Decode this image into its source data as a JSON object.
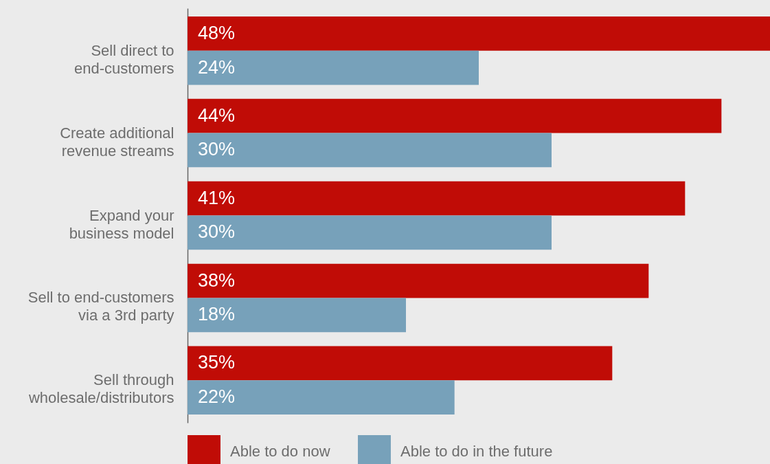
{
  "chart_data": {
    "type": "bar",
    "orientation": "horizontal",
    "categories": [
      "Sell direct to end-customers",
      "Create additional revenue streams",
      "Expand your business model",
      "Sell to end-customers via a 3rd party",
      "Sell through wholesale/distributors"
    ],
    "series": [
      {
        "name": "Able to do now",
        "color": "#c00c06",
        "values": [
          48,
          44,
          41,
          38,
          35
        ],
        "value_labels": [
          "48%",
          "44%",
          "41%",
          "38%",
          "35%"
        ]
      },
      {
        "name": "Able to do in the future",
        "color": "#77a1ba",
        "values": [
          24,
          30,
          30,
          18,
          22
        ],
        "value_labels": [
          "24%",
          "30%",
          "30%",
          "18%",
          "22%"
        ]
      }
    ],
    "xlim": [
      0,
      48
    ],
    "tick_labels": "y",
    "legend": "bottom"
  }
}
